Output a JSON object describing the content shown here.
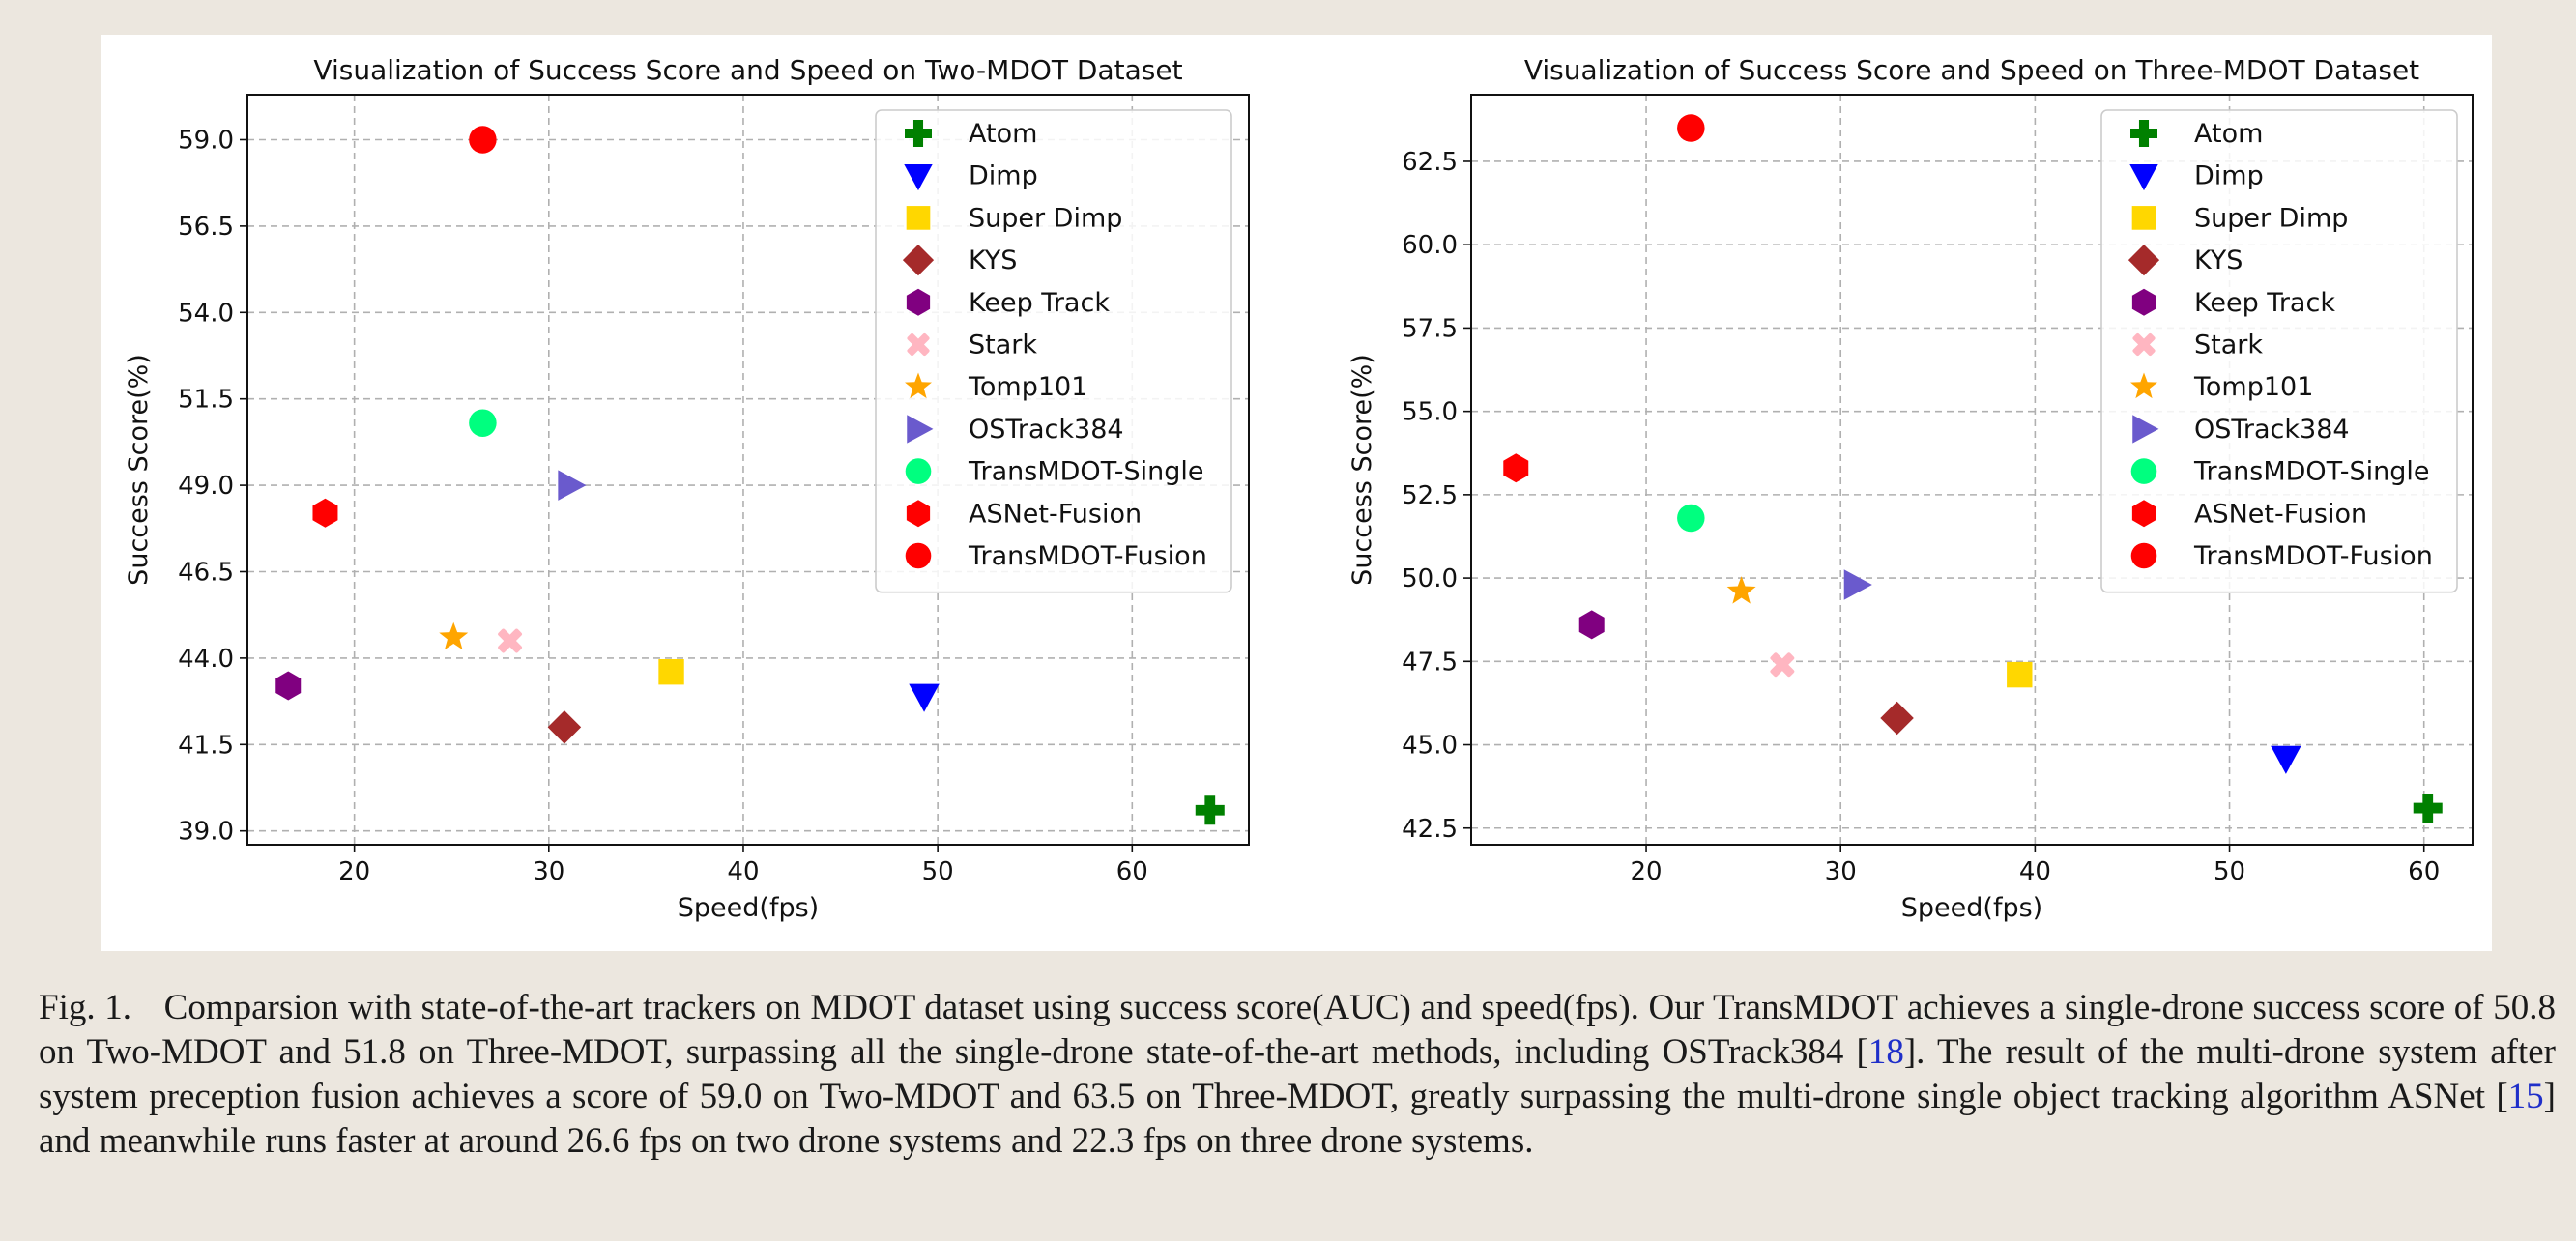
{
  "chart_data": [
    {
      "type": "scatter",
      "title": "Visualization of Success Score and Speed on Two-MDOT Dataset",
      "xlabel": "Speed(fps)",
      "ylabel": "Success Score(%)",
      "xlim": [
        14.5,
        66
      ],
      "ylim": [
        38.6,
        60.3
      ],
      "xticks": [
        20,
        30,
        40,
        50,
        60
      ],
      "yticks": [
        39.0,
        41.5,
        44.0,
        46.5,
        49.0,
        51.5,
        54.0,
        56.5,
        59.0
      ],
      "ytick_labels": [
        "39.0",
        "41.5",
        "44.0",
        "46.5",
        "49.0",
        "51.5",
        "54.0",
        "56.5",
        "59.0"
      ],
      "grid": true,
      "legend_position": "upper right",
      "series": [
        {
          "name": "Atom",
          "x": 64.0,
          "y": 39.6
        },
        {
          "name": "Dimp",
          "x": 49.3,
          "y": 42.9
        },
        {
          "name": "Super Dimp",
          "x": 36.3,
          "y": 43.6
        },
        {
          "name": "KYS",
          "x": 30.8,
          "y": 42.0
        },
        {
          "name": "Keep Track",
          "x": 16.6,
          "y": 43.2
        },
        {
          "name": "Stark",
          "x": 28.0,
          "y": 44.5
        },
        {
          "name": "Tomp101",
          "x": 25.1,
          "y": 44.6
        },
        {
          "name": "OSTrack384",
          "x": 31.1,
          "y": 49.0
        },
        {
          "name": "TransMDOT-Single",
          "x": 26.6,
          "y": 50.8
        },
        {
          "name": "ASNet-Fusion",
          "x": 18.5,
          "y": 48.2
        },
        {
          "name": "TransMDOT-Fusion",
          "x": 26.6,
          "y": 59.0
        }
      ]
    },
    {
      "type": "scatter",
      "title": "Visualization of Success Score and Speed on Three-MDOT Dataset",
      "xlabel": "Speed(fps)",
      "ylabel": "Success Score(%)",
      "xlim": [
        11,
        62.5
      ],
      "ylim": [
        42.0,
        64.5
      ],
      "xticks": [
        20,
        30,
        40,
        50,
        60
      ],
      "yticks": [
        42.5,
        45.0,
        47.5,
        50.0,
        52.5,
        55.0,
        57.5,
        60.0,
        62.5
      ],
      "ytick_labels": [
        "42.5",
        "45.0",
        "47.5",
        "50.0",
        "52.5",
        "55.0",
        "57.5",
        "60.0",
        "62.5"
      ],
      "grid": true,
      "legend_position": "upper right",
      "series": [
        {
          "name": "Atom",
          "x": 60.2,
          "y": 43.1
        },
        {
          "name": "Dimp",
          "x": 52.9,
          "y": 44.6
        },
        {
          "name": "Super Dimp",
          "x": 39.2,
          "y": 47.1
        },
        {
          "name": "KYS",
          "x": 32.9,
          "y": 45.8
        },
        {
          "name": "Keep Track",
          "x": 17.2,
          "y": 48.6
        },
        {
          "name": "Stark",
          "x": 27.0,
          "y": 47.4
        },
        {
          "name": "Tomp101",
          "x": 24.9,
          "y": 49.6
        },
        {
          "name": "OSTrack384",
          "x": 30.8,
          "y": 49.8
        },
        {
          "name": "TransMDOT-Single",
          "x": 22.3,
          "y": 51.8
        },
        {
          "name": "ASNet-Fusion",
          "x": 13.3,
          "y": 53.3
        },
        {
          "name": "TransMDOT-Fusion",
          "x": 22.3,
          "y": 63.5
        }
      ]
    }
  ],
  "styles": {
    "Atom": {
      "marker": "plus",
      "color": "#008000"
    },
    "Dimp": {
      "marker": "triangle-down",
      "color": "#0000ff"
    },
    "Super Dimp": {
      "marker": "square",
      "color": "#ffd700"
    },
    "KYS": {
      "marker": "diamond",
      "color": "#a52a2a"
    },
    "Keep Track": {
      "marker": "hexagon",
      "color": "#800080"
    },
    "Stark": {
      "marker": "x",
      "color": "#ffb6c1"
    },
    "Tomp101": {
      "marker": "star",
      "color": "#ffa500"
    },
    "OSTrack384": {
      "marker": "triangle-right",
      "color": "#6a5acd"
    },
    "TransMDOT-Single": {
      "marker": "circle",
      "color": "#00ff7f"
    },
    "ASNet-Fusion": {
      "marker": "hexagon",
      "color": "#ff0000"
    },
    "TransMDOT-Fusion": {
      "marker": "circle",
      "color": "#ff0000"
    }
  },
  "caption": {
    "label": "Fig. 1.",
    "part1": "Comparsion with state-of-the-art trackers on MDOT dataset using success score(AUC) and speed(fps). Our TransMDOT achieves a single-drone success score of 50.8 on Two-MDOT and 51.8 on Three-MDOT, surpassing all the single-drone state-of-the-art methods, including OSTrack384 [",
    "ref1": "18",
    "part2": "]. The result of the multi-drone system after system preception fusion achieves a score of 59.0 on Two-MDOT and 63.5 on Three-MDOT, greatly surpassing the multi-drone single object tracking algorithm ASNet [",
    "ref2": "15",
    "part3": "] and meanwhile runs faster at around 26.6 fps on two drone systems and 22.3 fps on three drone systems."
  }
}
